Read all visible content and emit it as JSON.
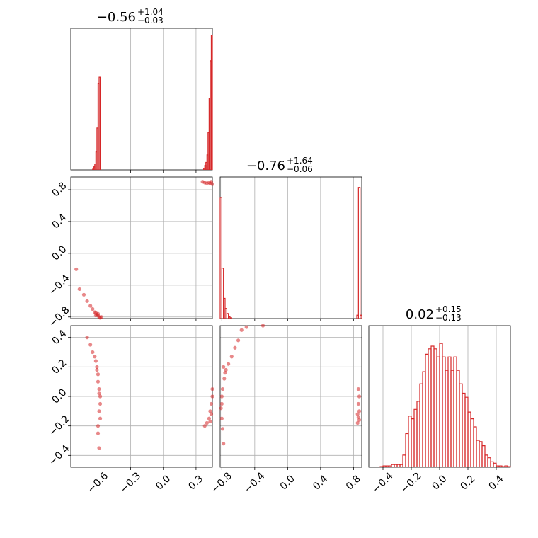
{
  "chart_data": {
    "type": "corner",
    "color": "#d62728",
    "grid": true,
    "parameters": [
      {
        "name": "",
        "xlim": [
          -0.85,
          0.45
        ],
        "ticks": [
          -0.6,
          -0.3,
          0.0,
          0.3
        ],
        "tick_labels": [
          "−0.6",
          "−0.3",
          "0.0",
          "0.3"
        ],
        "title_median": "−0.56",
        "title_plus": "+1.04",
        "title_minus": "−0.03"
      },
      {
        "name": "",
        "xlim": [
          -0.82,
          0.9
        ],
        "ticks": [
          -0.8,
          -0.4,
          0.0,
          0.4,
          0.8
        ],
        "tick_labels": [
          "−0.8",
          "−0.4",
          "0.0",
          "0.4",
          "0.8"
        ],
        "title_median": "−0.76",
        "title_plus": "+1.64",
        "title_minus": "−0.06"
      },
      {
        "name": "",
        "xlim": [
          -0.5,
          0.5
        ],
        "ticks": [
          -0.4,
          -0.2,
          0.0,
          0.2,
          0.4
        ],
        "tick_labels": [
          "−0.4",
          "−0.2",
          "0.0",
          "0.2",
          "0.4"
        ],
        "title_median": "0.02",
        "title_plus": "+0.15",
        "title_minus": "−0.13"
      }
    ],
    "row_ylims": [
      null,
      [
        -0.82,
        0.96
      ],
      [
        -0.48,
        0.48
      ]
    ],
    "row_yticks": [
      null,
      {
        "ticks": [
          -0.8,
          -0.4,
          0.0,
          0.4,
          0.8
        ],
        "labels": [
          "−0.8",
          "−0.4",
          "0.0",
          "0.4",
          "0.8"
        ]
      },
      {
        "ticks": [
          -0.4,
          -0.2,
          0.0,
          0.2,
          0.4
        ],
        "labels": [
          "−0.4",
          "−0.2",
          "0.0",
          "0.2",
          "0.4"
        ]
      }
    ],
    "histograms": [
      {
        "param": 0,
        "bin_width": 0.01,
        "bins": [
          [
            -0.65,
            0.005
          ],
          [
            -0.64,
            0.02
          ],
          [
            -0.63,
            0.04
          ],
          [
            -0.62,
            0.12
          ],
          [
            -0.61,
            0.28
          ],
          [
            -0.6,
            0.58
          ],
          [
            -0.59,
            0.62
          ],
          [
            0.37,
            0.01
          ],
          [
            0.38,
            0.03
          ],
          [
            0.39,
            0.05
          ],
          [
            0.4,
            0.1
          ],
          [
            0.41,
            0.25
          ],
          [
            0.42,
            0.48
          ],
          [
            0.43,
            0.73
          ],
          [
            0.44,
            0.9
          ],
          [
            0.45,
            0.9
          ]
        ],
        "ymax": 0.9
      },
      {
        "param": 1,
        "bin_width": 0.02,
        "bins": [
          [
            -0.82,
            0.72
          ],
          [
            -0.8,
            0.3
          ],
          [
            -0.78,
            0.12
          ],
          [
            -0.76,
            0.06
          ],
          [
            -0.74,
            0.03
          ],
          [
            -0.72,
            0.01
          ],
          [
            -0.7,
            0.005
          ],
          [
            0.84,
            0.02
          ],
          [
            0.86,
            0.78
          ],
          [
            0.88,
            0.02
          ]
        ],
        "ymax": 0.8
      },
      {
        "param": 2,
        "bin_width": 0.02,
        "bins": [
          [
            -0.42,
            0.005
          ],
          [
            -0.4,
            0.01
          ],
          [
            -0.38,
            0.01
          ],
          [
            -0.36,
            0.01
          ],
          [
            -0.34,
            0.02
          ],
          [
            -0.32,
            0.02
          ],
          [
            -0.3,
            0.02
          ],
          [
            -0.28,
            0.02
          ],
          [
            -0.26,
            0.09
          ],
          [
            -0.24,
            0.25
          ],
          [
            -0.22,
            0.38
          ],
          [
            -0.2,
            0.36
          ],
          [
            -0.18,
            0.43
          ],
          [
            -0.16,
            0.49
          ],
          [
            -0.14,
            0.62
          ],
          [
            -0.12,
            0.71
          ],
          [
            -0.1,
            0.84
          ],
          [
            -0.08,
            0.88
          ],
          [
            -0.06,
            0.9
          ],
          [
            -0.04,
            0.88
          ],
          [
            -0.02,
            0.82
          ],
          [
            0.0,
            0.92
          ],
          [
            0.02,
            0.82
          ],
          [
            0.04,
            0.72
          ],
          [
            0.06,
            0.82
          ],
          [
            0.08,
            0.72
          ],
          [
            0.1,
            0.82
          ],
          [
            0.12,
            0.72
          ],
          [
            0.14,
            0.62
          ],
          [
            0.16,
            0.55
          ],
          [
            0.18,
            0.52
          ],
          [
            0.2,
            0.41
          ],
          [
            0.22,
            0.36
          ],
          [
            0.24,
            0.3
          ],
          [
            0.26,
            0.2
          ],
          [
            0.28,
            0.19
          ],
          [
            0.3,
            0.16
          ],
          [
            0.32,
            0.09
          ],
          [
            0.34,
            0.07
          ],
          [
            0.36,
            0.04
          ],
          [
            0.38,
            0.03
          ],
          [
            0.4,
            0.01
          ],
          [
            0.42,
            0.01
          ],
          [
            0.44,
            0.005
          ],
          [
            0.46,
            0.01
          ],
          [
            0.48,
            0.005
          ]
        ],
        "ymax": 1.0
      }
    ],
    "scatter": [
      {
        "row": 1,
        "col": 0,
        "clusters": [
          {
            "points": [
              [
                -0.8,
                -0.2
              ],
              [
                -0.77,
                -0.45
              ],
              [
                -0.73,
                -0.52
              ],
              [
                -0.7,
                -0.6
              ],
              [
                -0.67,
                -0.66
              ],
              [
                -0.65,
                -0.7
              ],
              [
                -0.63,
                -0.74
              ],
              [
                -0.62,
                -0.75
              ],
              [
                -0.61,
                -0.77
              ],
              [
                -0.6,
                -0.78
              ],
              [
                -0.59,
                -0.8
              ],
              [
                -0.58,
                -0.81
              ],
              [
                -0.6,
                -0.76
              ],
              [
                -0.62,
                -0.78
              ],
              [
                -0.57,
                -0.8
              ]
            ]
          },
          {
            "points": [
              [
                0.36,
                0.9
              ],
              [
                0.38,
                0.89
              ],
              [
                0.4,
                0.88
              ],
              [
                0.42,
                0.89
              ],
              [
                0.44,
                0.9
              ],
              [
                0.45,
                0.87
              ],
              [
                0.43,
                0.88
              ]
            ]
          }
        ]
      },
      {
        "row": 2,
        "col": 0,
        "clusters": [
          {
            "points": [
              [
                -0.7,
                0.4
              ],
              [
                -0.67,
                0.35
              ],
              [
                -0.65,
                0.3
              ],
              [
                -0.63,
                0.27
              ],
              [
                -0.62,
                0.24
              ],
              [
                -0.61,
                0.2
              ],
              [
                -0.6,
                0.15
              ],
              [
                -0.6,
                0.1
              ],
              [
                -0.59,
                0.05
              ],
              [
                -0.58,
                0.0
              ],
              [
                -0.58,
                -0.05
              ],
              [
                -0.59,
                -0.1
              ],
              [
                -0.58,
                -0.15
              ],
              [
                -0.6,
                -0.2
              ],
              [
                -0.6,
                -0.25
              ],
              [
                -0.59,
                -0.35
              ],
              [
                -0.61,
                0.18
              ],
              [
                -0.59,
                0.02
              ]
            ]
          },
          {
            "points": [
              [
                0.38,
                -0.2
              ],
              [
                0.4,
                -0.18
              ],
              [
                0.42,
                -0.15
              ],
              [
                0.43,
                -0.1
              ],
              [
                0.44,
                -0.05
              ],
              [
                0.45,
                0.0
              ],
              [
                0.45,
                0.05
              ],
              [
                0.44,
                -0.12
              ],
              [
                0.43,
                -0.17
              ]
            ]
          }
        ]
      },
      {
        "row": 2,
        "col": 1,
        "clusters": [
          {
            "points": [
              [
                -0.56,
                0.45
              ],
              [
                -0.6,
                0.38
              ],
              [
                -0.64,
                0.33
              ],
              [
                -0.68,
                0.27
              ],
              [
                -0.72,
                0.22
              ],
              [
                -0.75,
                0.18
              ],
              [
                -0.77,
                0.12
              ],
              [
                -0.79,
                0.05
              ],
              [
                -0.8,
                0.0
              ],
              [
                -0.81,
                -0.08
              ],
              [
                -0.8,
                -0.15
              ],
              [
                -0.79,
                -0.22
              ],
              [
                -0.78,
                -0.32
              ],
              [
                -0.78,
                0.2
              ],
              [
                -0.76,
                0.16
              ],
              [
                -0.8,
                -0.05
              ]
            ]
          },
          {
            "points": [
              [
                0.85,
                -0.18
              ],
              [
                0.86,
                -0.14
              ],
              [
                0.87,
                -0.1
              ],
              [
                0.86,
                -0.05
              ],
              [
                0.87,
                0.0
              ],
              [
                0.86,
                0.05
              ],
              [
                0.85,
                -0.12
              ],
              [
                0.87,
                -0.16
              ]
            ]
          },
          {
            "points": [
              [
                -0.5,
                0.47
              ],
              [
                -0.3,
                0.48
              ]
            ]
          }
        ]
      }
    ]
  }
}
